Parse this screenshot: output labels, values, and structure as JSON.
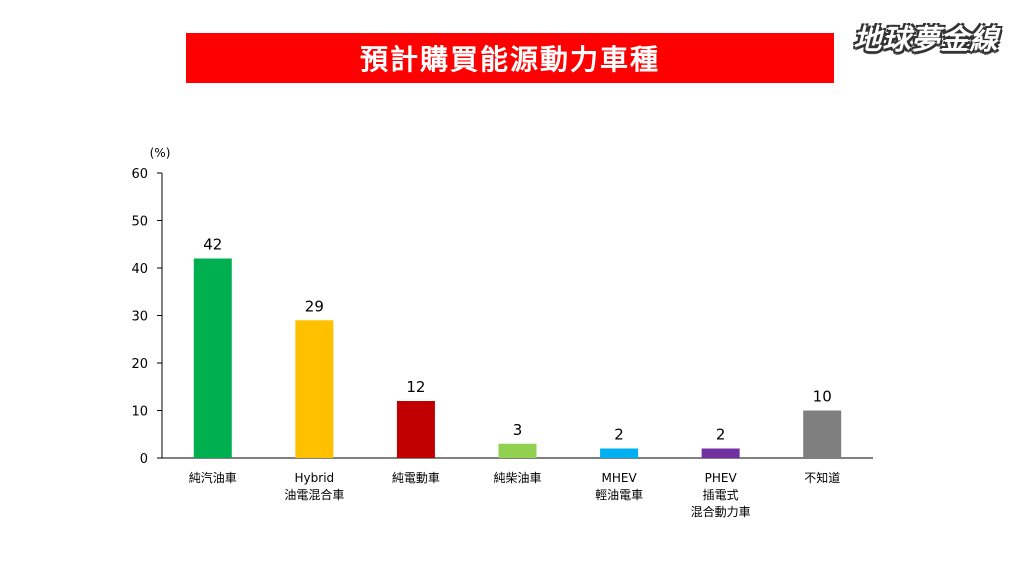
{
  "banner": {
    "title": "預計購買能源動力車種"
  },
  "logo": {
    "text": "地球夢金線"
  },
  "chart_data": {
    "type": "bar",
    "unit_label": "(%)",
    "ylim": [
      0,
      60
    ],
    "yticks": [
      0,
      10,
      20,
      30,
      40,
      50,
      60
    ],
    "grid": false,
    "categories": [
      [
        "純汽油車"
      ],
      [
        "Hybrid",
        "油電混合車"
      ],
      [
        "純電動車"
      ],
      [
        "純柴油車"
      ],
      [
        "MHEV",
        "輕油電車"
      ],
      [
        "PHEV",
        "插電式",
        "混合動力車"
      ],
      [
        "不知道"
      ]
    ],
    "values": [
      42,
      29,
      12,
      3,
      2,
      2,
      10
    ],
    "colors": [
      "#00b050",
      "#ffc000",
      "#c00000",
      "#92d050",
      "#00b0f0",
      "#7030a0",
      "#7f7f7f"
    ]
  }
}
